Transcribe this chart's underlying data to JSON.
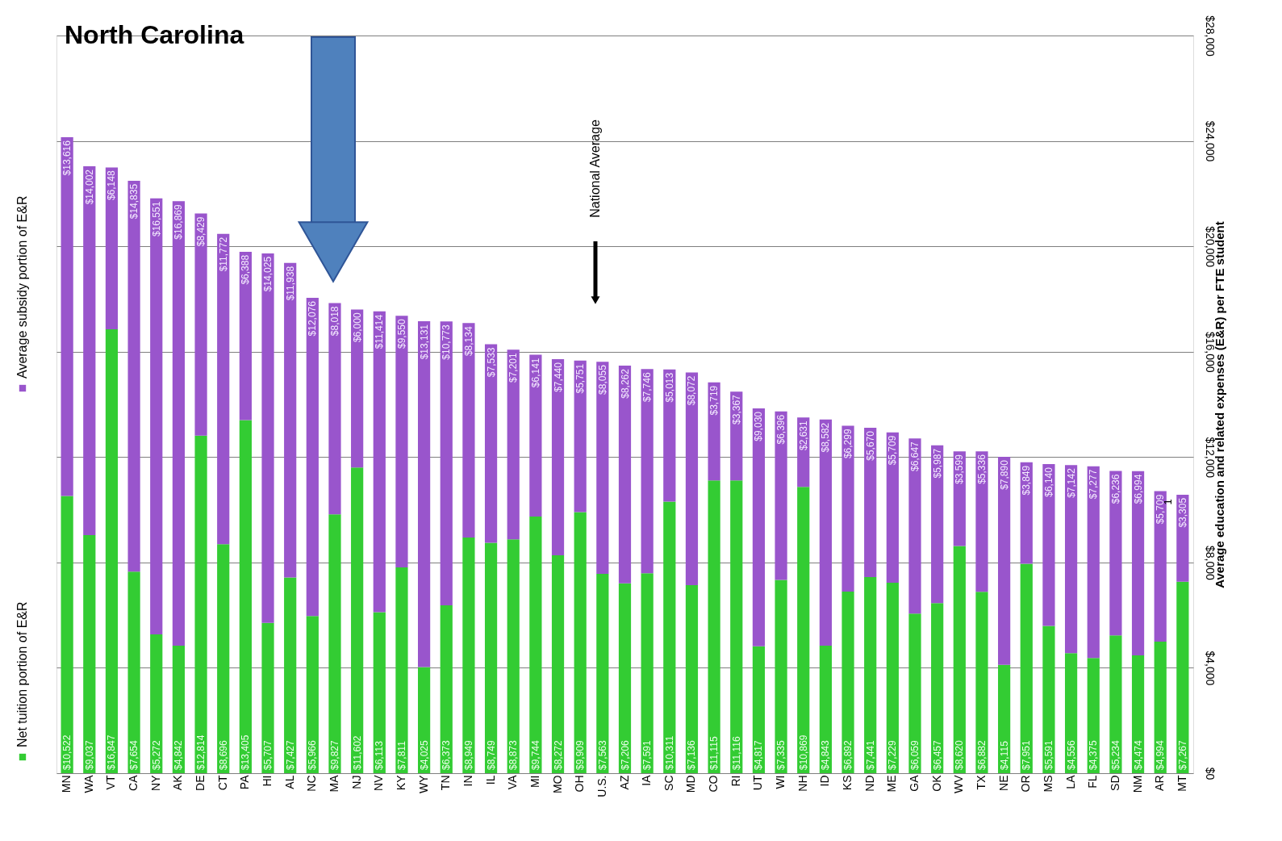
{
  "chart_data": {
    "type": "bar",
    "title": "North Carolina",
    "ylabel": "Average education and related expenses  (E&R) per FTE student",
    "categories": [
      "MN",
      "WA",
      "VT",
      "CA",
      "NY",
      "AK",
      "DE",
      "CT",
      "PA",
      "HI",
      "AL",
      "NC",
      "MA",
      "NJ",
      "NV",
      "KY",
      "WY",
      "TN",
      "IN",
      "IL",
      "VA",
      "MI",
      "MO",
      "OH",
      "U.S.",
      "AZ",
      "IA",
      "SC",
      "MD",
      "CO",
      "RI",
      "UT",
      "WI",
      "NH",
      "ID",
      "KS",
      "ND",
      "ME",
      "GA",
      "OK",
      "WV",
      "TX",
      "NE",
      "OR",
      "MS",
      "LA",
      "FL",
      "SD",
      "NM",
      "AR",
      "MT"
    ],
    "stacked": true,
    "series": [
      {
        "name": "Net tuition portion of E&R",
        "color": "#33cc33",
        "values": [
          10522,
          9037,
          16847,
          7654,
          5272,
          4842,
          12814,
          8696,
          13405,
          5707,
          7427,
          5966,
          9827,
          11602,
          6113,
          7811,
          4025,
          6373,
          8949,
          8749,
          8873,
          9744,
          8272,
          9909,
          7563,
          7206,
          7591,
          10311,
          7136,
          11115,
          11116,
          4817,
          7335,
          10869,
          4843,
          6892,
          7441,
          7229,
          6059,
          6457,
          8620,
          6882,
          4115,
          7951,
          5591,
          4556,
          4375,
          5234,
          4474,
          4994,
          7267
        ],
        "value_labels": [
          "$10,522",
          "$9,037",
          "$16,847",
          "$7,654",
          "$5,272",
          "$4,842",
          "$12,814",
          "$8,696",
          "$13,405",
          "$5,707",
          "$7,427",
          "$5,966",
          "$9,827",
          "$11,602",
          "$6,113",
          "$7,811",
          "$4,025",
          "$6,373",
          "$8,949",
          "$8,749",
          "$8,873",
          "$9,744",
          "$8,272",
          "$9,909",
          "$7,563",
          "$7,206",
          "$7,591",
          "$10,311",
          "$7,136",
          "$11,115",
          "$11,116",
          "$4,817",
          "$7,335",
          "$10,869",
          "$4,843",
          "$6,892",
          "$7,441",
          "$7,229",
          "$6,059",
          "$6,457",
          "$8,620",
          "$6,882",
          "$4,115",
          "$7,951",
          "$5,591",
          "$4,556",
          "$4,375",
          "$5,234",
          "$4,474",
          "$4,994",
          "$7,267"
        ]
      },
      {
        "name": "Average subsidy portion of E&R",
        "color": "#9955cc",
        "values": [
          13616,
          14002,
          6148,
          14835,
          16551,
          16869,
          8429,
          11772,
          6388,
          14025,
          11938,
          12076,
          8018,
          6000,
          11414,
          9550,
          13131,
          10773,
          8134,
          7533,
          7201,
          6141,
          7440,
          5751,
          8055,
          8262,
          7746,
          5013,
          8072,
          3719,
          3367,
          9030,
          6396,
          2631,
          8582,
          6299,
          5670,
          5709,
          6647,
          5987,
          3599,
          5336,
          7890,
          3849,
          6140,
          7142,
          7277,
          6236,
          6994,
          5709,
          3305
        ],
        "value_labels": [
          "$13,616",
          "$14,002",
          "$6,148",
          "$14,835",
          "$16,551",
          "$16,869",
          "$8,429",
          "$11,772",
          "$6,388",
          "$14,025",
          "$11,938",
          "$12,076",
          "$8,018",
          "$6,000",
          "$11,414",
          "$9,550",
          "$13,131",
          "$10,773",
          "$8,134",
          "$7,533",
          "$7,201",
          "$6,141",
          "$7,440",
          "$5,751",
          "$8,055",
          "$8,262",
          "$7,746",
          "$5,013",
          "$8,072",
          "$3,719",
          "$3,367",
          "$9,030",
          "$6,396",
          "$2,631",
          "$8,582",
          "$6,299",
          "$5,670",
          "$5,709",
          "$6,647",
          "$5,987",
          "$3,599",
          "$5,336",
          "$7,890",
          "$3,849",
          "$6,140",
          "$7,142",
          "$7,277",
          "$6,236",
          "$6,994",
          "$5,709",
          "$3,305"
        ]
      }
    ],
    "ylim": [
      0,
      28000
    ],
    "yticks": [
      {
        "value": 0,
        "label": "$0"
      },
      {
        "value": 4000,
        "label": "$4,000"
      },
      {
        "value": 8000,
        "label": "$8,000"
      },
      {
        "value": 12000,
        "label": "$12,000"
      },
      {
        "value": 16000,
        "label": "$16,000"
      },
      {
        "value": 20000,
        "label": "$20,000"
      },
      {
        "value": 24000,
        "label": "$24,000"
      },
      {
        "value": 28000,
        "label": "$28,000"
      }
    ],
    "grid": "y",
    "legend": "left",
    "annotations": [
      "National Average",
      "1"
    ]
  }
}
